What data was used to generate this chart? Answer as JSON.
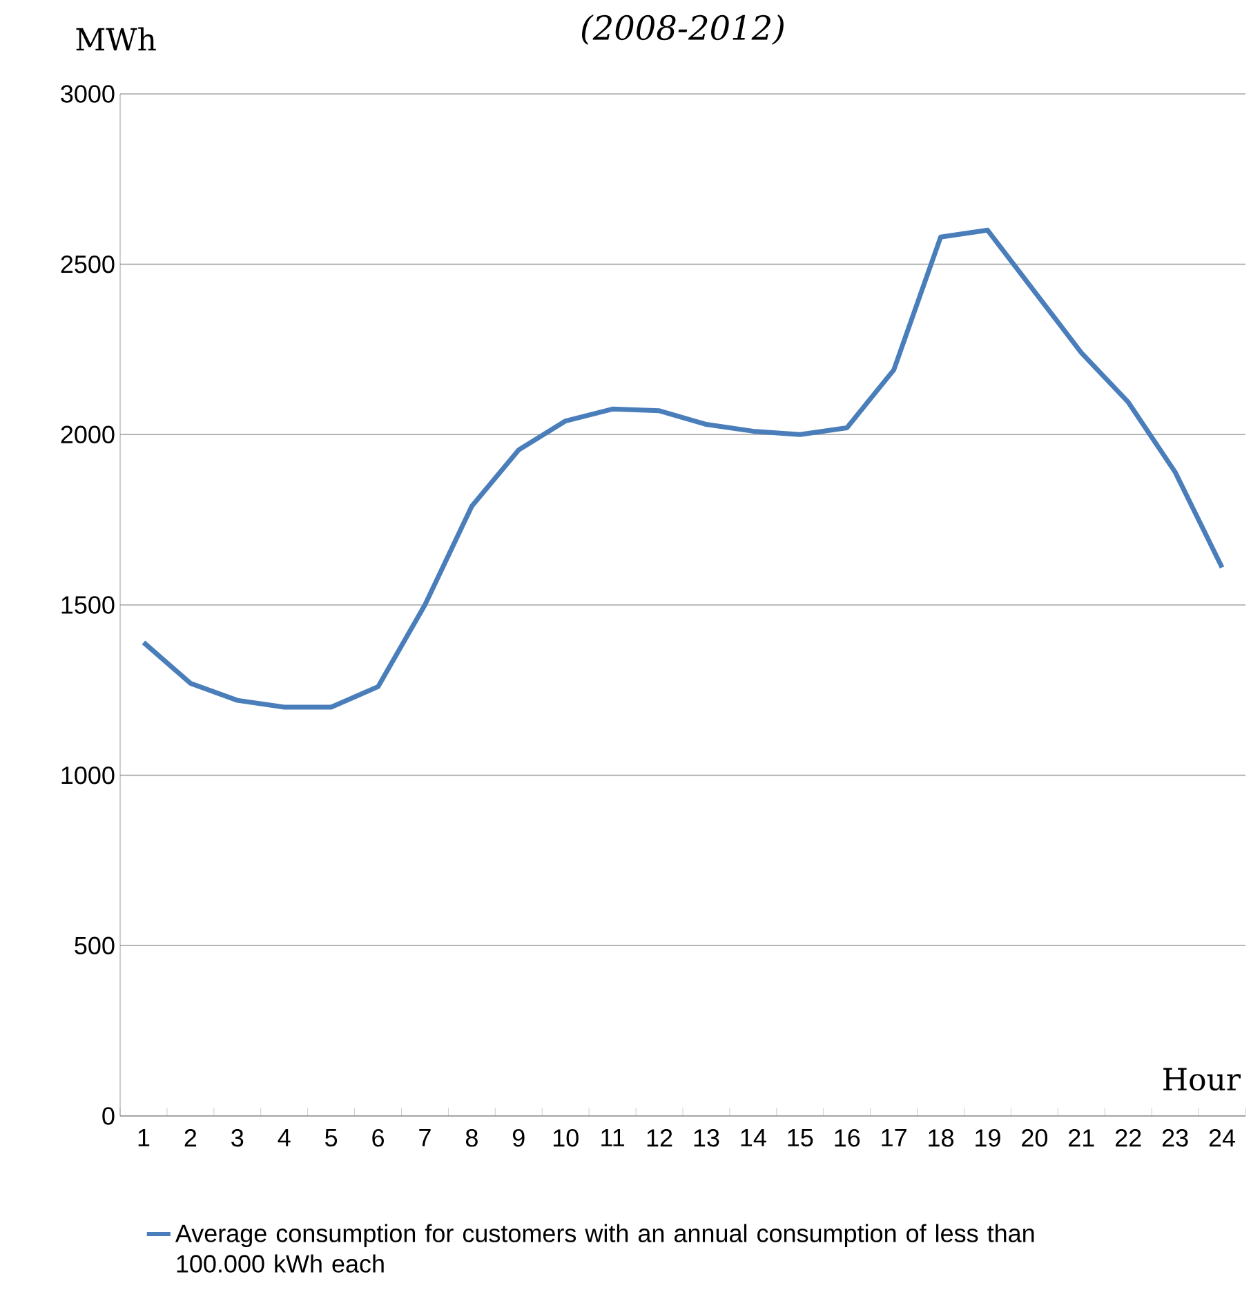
{
  "chart_data": {
    "type": "line",
    "title": "(2008-2012)",
    "xlabel": "Hour",
    "ylabel": "MWh",
    "categories": [
      "1",
      "2",
      "3",
      "4",
      "5",
      "6",
      "7",
      "8",
      "9",
      "10",
      "11",
      "12",
      "13",
      "14",
      "15",
      "16",
      "17",
      "18",
      "19",
      "20",
      "21",
      "22",
      "23",
      "24"
    ],
    "series": [
      {
        "name": "Average consumption for customers with an annual consumption of less than 100.000 kWh each",
        "color": "#4a7ebb",
        "values": [
          1390,
          1270,
          1220,
          1200,
          1200,
          1260,
          1500,
          1790,
          1955,
          2040,
          2075,
          2070,
          2030,
          2010,
          2000,
          2020,
          2190,
          2580,
          2600,
          2420,
          2240,
          2095,
          1890,
          1610
        ]
      }
    ],
    "ylim": [
      0,
      3000
    ],
    "yticks": [
      0,
      500,
      1000,
      1500,
      2000,
      2500,
      3000
    ],
    "grid": "y",
    "legend": "bottom",
    "marker": "none",
    "line_style": "solid"
  }
}
